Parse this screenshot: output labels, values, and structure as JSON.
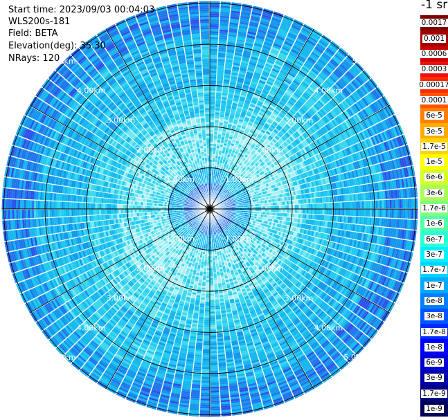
{
  "info": {
    "start_time": "Start time: 2023/09/03 00:04:03",
    "instrument": "WLS200s-181",
    "field": "Field: BETA",
    "elevation": "Elevation(deg): 35.30",
    "nrays": "NRays: 120"
  },
  "units": "-1 sr",
  "range_rings": [
    {
      "km": 1,
      "label": "1.00km"
    },
    {
      "km": 2,
      "label": "2.00km"
    },
    {
      "km": 3,
      "label": "3.00km"
    },
    {
      "km": 4,
      "label": "4.00km"
    },
    {
      "km": 5,
      "label": "5.00km"
    }
  ],
  "ring_label_side": {
    "ne": "5.0",
    "nw": "5.00km"
  },
  "colorbar": [
    {
      "label": "0.0017",
      "color": "#7f0000"
    },
    {
      "label": "0.001",
      "color": "#a50000"
    },
    {
      "label": "0.0006",
      "color": "#cc0000"
    },
    {
      "label": "0.0003",
      "color": "#ee1010"
    },
    {
      "label": "0.00017",
      "color": "#ff2b00"
    },
    {
      "label": "0.0001",
      "color": "#ff5500"
    },
    {
      "label": "6e-5",
      "color": "#ff7f00"
    },
    {
      "label": "3e-5",
      "color": "#ffaa00"
    },
    {
      "label": "1.7e-5",
      "color": "#ffd500"
    },
    {
      "label": "1e-5",
      "color": "#ffff00"
    },
    {
      "label": "6e-6",
      "color": "#d4ff2b"
    },
    {
      "label": "3e-6",
      "color": "#aaff55"
    },
    {
      "label": "1.7e-6",
      "color": "#80ff80"
    },
    {
      "label": "1e-6",
      "color": "#55ffaa"
    },
    {
      "label": "6e-7",
      "color": "#2bffd4"
    },
    {
      "label": "3e-7",
      "color": "#00f0ff"
    },
    {
      "label": "1.7e-7",
      "color": "#00d4ff"
    },
    {
      "label": "1e-7",
      "color": "#00aaff"
    },
    {
      "label": "6e-8",
      "color": "#0080ff"
    },
    {
      "label": "3e-8",
      "color": "#0055ff"
    },
    {
      "label": "1.7e-8",
      "color": "#002bff"
    },
    {
      "label": "1e-8",
      "color": "#0000ff"
    },
    {
      "label": "6e-9",
      "color": "#0000d4"
    },
    {
      "label": "3e-9",
      "color": "#0000aa"
    },
    {
      "label": "1.7e-9",
      "color": "#000080"
    },
    {
      "label": "1e-9",
      "color": "#00005a"
    }
  ],
  "ppi_palette": [
    "#1a2bd8",
    "#2a52e8",
    "#1f74ec",
    "#1496ec",
    "#15b6ee",
    "#1ec8f2",
    "#3ad6ee",
    "#6fe6f0",
    "#aef0f4"
  ]
}
